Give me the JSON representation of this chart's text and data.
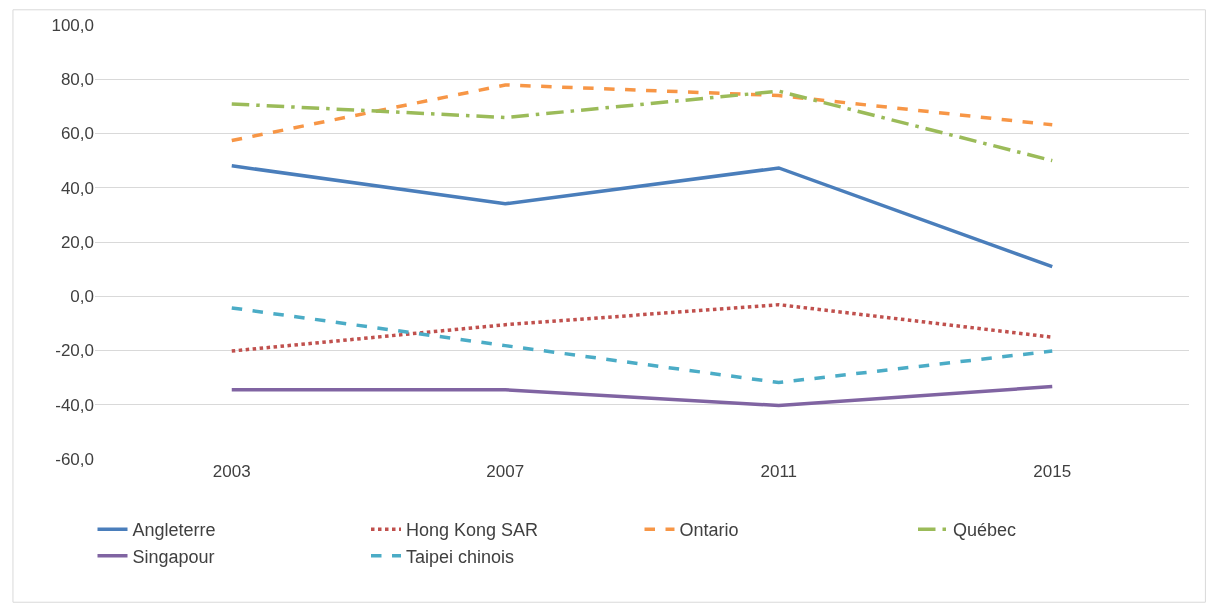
{
  "chart_data": {
    "type": "line",
    "categories": [
      "2003",
      "2007",
      "2011",
      "2015"
    ],
    "series": [
      {
        "name": "Angleterre",
        "color": "#4a7ebb",
        "line_style": "solid",
        "values": [
          48.1,
          34.1,
          47.3,
          10.9
        ]
      },
      {
        "name": "Hong Kong SAR",
        "color": "#c0504d",
        "line_style": "dotted",
        "values": [
          -20.2,
          -10.5,
          -3.1,
          -15.1
        ]
      },
      {
        "name": "Ontario",
        "color": "#f79646",
        "line_style": "dashed",
        "values": [
          57.4,
          77.9,
          74.0,
          63.2
        ]
      },
      {
        "name": "Québec",
        "color": "#9bbb59",
        "line_style": "dashdot",
        "values": [
          70.9,
          65.9,
          75.6,
          50.0
        ]
      },
      {
        "name": "Singapour",
        "color": "#8064a2",
        "line_style": "solid",
        "values": [
          -34.5,
          -34.5,
          -40.3,
          -33.3
        ]
      },
      {
        "name": "Taipei chinois",
        "color": "#4bacc6",
        "line_style": "dashed",
        "values": [
          -4.3,
          -18.2,
          -31.8,
          -20.2
        ]
      }
    ],
    "ylim": [
      -60,
      100
    ],
    "yticks": [
      {
        "value": -60,
        "label": "-60,0"
      },
      {
        "value": -40,
        "label": "-40,0"
      },
      {
        "value": -20,
        "label": "-20,0"
      },
      {
        "value": 0,
        "label": "0,0"
      },
      {
        "value": 20,
        "label": "20,0"
      },
      {
        "value": 40,
        "label": "40,0"
      },
      {
        "value": 60,
        "label": "60,0"
      },
      {
        "value": 80,
        "label": "80,0"
      },
      {
        "value": 100,
        "label": "100,0"
      }
    ],
    "grid": "y",
    "legend": "bottom",
    "marker": "none"
  }
}
